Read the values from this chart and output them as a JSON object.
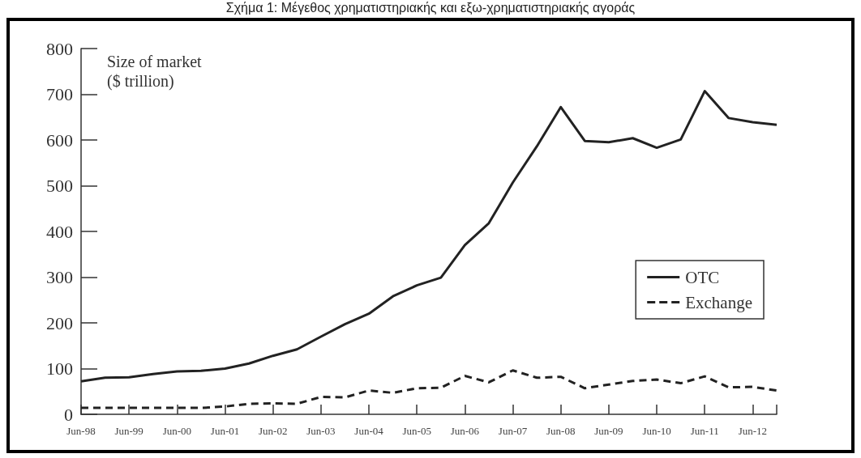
{
  "chart_data": {
    "type": "line",
    "title": "Σχήμα 1: Μέγεθος χρηματιστηριακής και εξω-χρηματιστηριακής αγοράς",
    "ylabel": "Size of market ($ trillion)",
    "categories": [
      "Jun-98",
      null,
      "Jun-99",
      null,
      "Jun-00",
      null,
      "Jun-01",
      null,
      "Jun-02",
      null,
      "Jun-03",
      null,
      "Jun-04",
      null,
      "Jun-05",
      null,
      "Jun-06",
      null,
      "Jun-07",
      null,
      "Jun-08",
      null,
      "Jun-09",
      null,
      "Jun-10",
      null,
      "Jun-11",
      null,
      "Jun-12",
      null
    ],
    "series": [
      {
        "name": "OTC",
        "color": "#222222",
        "line_style": "solid",
        "values": [
          72,
          80,
          81,
          88,
          94,
          95,
          100,
          111,
          128,
          142,
          170,
          197,
          220,
          258,
          282,
          299,
          370,
          418,
          507,
          586,
          672,
          598,
          595,
          604,
          583,
          601,
          707,
          648,
          639,
          633
        ]
      },
      {
        "name": "Exchange",
        "color": "#222222",
        "line_style": "dashed",
        "values": [
          14,
          14,
          14,
          14,
          14,
          14,
          17,
          23,
          24,
          23,
          38,
          37,
          52,
          47,
          57,
          58,
          84,
          70,
          96,
          80,
          82,
          57,
          65,
          73,
          76,
          68,
          83,
          59,
          60,
          52
        ]
      }
    ],
    "ylim": [
      0,
      800
    ],
    "yticks": [
      0,
      100,
      200,
      300,
      400,
      500,
      600,
      700,
      800
    ],
    "grid": false,
    "legend": "bottom right",
    "marker": "none"
  }
}
